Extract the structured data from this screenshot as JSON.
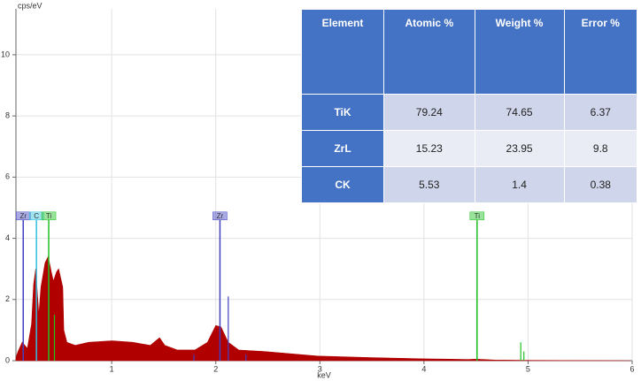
{
  "chart_data": {
    "type": "area",
    "y_label": "cps/eV",
    "x_label": "keV",
    "xlim": [
      0.08,
      6
    ],
    "ylim": [
      0,
      11.5
    ],
    "xticks": [
      1,
      2,
      3,
      4,
      5,
      6
    ],
    "yticks": [
      0,
      2,
      4,
      6,
      8,
      10
    ],
    "grid": true,
    "color": "#b00000",
    "x": [
      0.08,
      0.1,
      0.14,
      0.19,
      0.23,
      0.25,
      0.27,
      0.3,
      0.32,
      0.36,
      0.39,
      0.42,
      0.44,
      0.47,
      0.49,
      0.53,
      0.54,
      0.57,
      0.65,
      0.78,
      1.0,
      1.2,
      1.37,
      1.46,
      1.51,
      1.63,
      1.8,
      1.92,
      2.0,
      2.05,
      2.12,
      2.22,
      2.47,
      2.98,
      3.49,
      4.0,
      4.42,
      4.5,
      4.68,
      5.02,
      5.98
    ],
    "values": [
      0.1,
      0.3,
      0.6,
      0.4,
      1.2,
      2.5,
      3.0,
      1.5,
      2.4,
      3.2,
      3.4,
      2.9,
      2.6,
      2.9,
      3.0,
      2.4,
      1.0,
      0.6,
      0.5,
      0.6,
      0.65,
      0.6,
      0.5,
      0.75,
      0.5,
      0.35,
      0.35,
      0.6,
      1.15,
      1.1,
      0.6,
      0.35,
      0.3,
      0.15,
      0.1,
      0.06,
      0.04,
      0.05,
      0.02,
      0.01,
      0.0
    ],
    "markers": [
      {
        "label": "Zr",
        "x": 0.15,
        "height": 4.6,
        "color": "#4040c0"
      },
      {
        "label": "C",
        "x": 0.277,
        "height": 4.6,
        "color": "#30c0e0"
      },
      {
        "label": "Ti",
        "x": 0.395,
        "height": 4.6,
        "color": "#20c020"
      },
      {
        "label": "Zr",
        "x": 2.04,
        "height": 4.6,
        "color": "#4040c0"
      },
      {
        "label": "Ti",
        "x": 4.51,
        "height": 4.6,
        "color": "#20c020"
      }
    ],
    "lines": [
      {
        "x": 2.12,
        "height": 2.1,
        "color": "#4040c0"
      },
      {
        "x": 0.45,
        "height": 1.5,
        "color": "#20c020"
      },
      {
        "x": 4.51,
        "height": 2.3,
        "color": "#20c020"
      },
      {
        "x": 4.93,
        "height": 0.6,
        "color": "#20c020"
      },
      {
        "x": 4.96,
        "height": 0.3,
        "color": "#20c020"
      },
      {
        "x": 1.79,
        "height": 0.2,
        "color": "#4040c0"
      },
      {
        "x": 2.29,
        "height": 0.2,
        "color": "#4040c0"
      }
    ]
  },
  "table": {
    "columns": [
      "Element",
      "Atomic %",
      "Weight %",
      "Error %"
    ],
    "rows": [
      [
        "TiK",
        79.24,
        74.65,
        6.37
      ],
      [
        "ZrL",
        15.23,
        23.95,
        9.8
      ],
      [
        "CK",
        5.53,
        1.4,
        0.38
      ]
    ]
  }
}
